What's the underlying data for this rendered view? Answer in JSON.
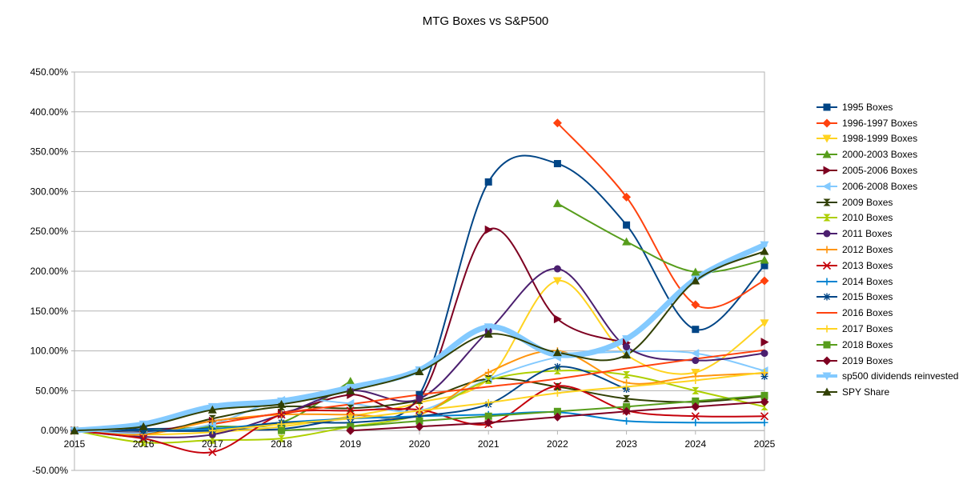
{
  "chart_data": {
    "type": "line",
    "title": "MTG Boxes vs S&P500",
    "xlabel": "",
    "ylabel": "",
    "categories": [
      "2015",
      "2016",
      "2017",
      "2018",
      "2019",
      "2020",
      "2021",
      "2022",
      "2023",
      "2024",
      "2025"
    ],
    "ylim": [
      -50,
      450
    ],
    "yticks": [
      -50,
      0,
      50,
      100,
      150,
      200,
      250,
      300,
      350,
      400,
      450
    ],
    "ytick_labels": [
      "-50.00%",
      "0.00%",
      "50.00%",
      "100.00%",
      "150.00%",
      "200.00%",
      "250.00%",
      "300.00%",
      "350.00%",
      "400.00%",
      "450.00%"
    ],
    "grid": "horizontal",
    "legend_position": "right",
    "series": [
      {
        "name": "1995 Boxes",
        "color": "#004586",
        "marker": "square",
        "values": [
          0,
          2,
          3,
          2,
          18,
          45,
          312,
          335,
          258,
          127,
          207
        ]
      },
      {
        "name": "1996-1997 Boxes",
        "color": "#ff420e",
        "marker": "diamond",
        "values": [
          0,
          null,
          null,
          null,
          null,
          null,
          null,
          386,
          293,
          158,
          188
        ]
      },
      {
        "name": "1998-1999 Boxes",
        "color": "#ffd320",
        "marker": "triangle-down",
        "values": [
          0,
          -5,
          -2,
          5,
          18,
          35,
          65,
          188,
          95,
          73,
          135
        ]
      },
      {
        "name": "2000-2003 Boxes",
        "color": "#579d1c",
        "marker": "triangle-up",
        "values": [
          0,
          0,
          5,
          10,
          62,
          null,
          null,
          285,
          237,
          199,
          214
        ]
      },
      {
        "name": "2005-2006 Boxes",
        "color": "#7e0021",
        "marker": "triangle-right",
        "values": [
          0,
          -2,
          12,
          22,
          45,
          40,
          252,
          140,
          110,
          null,
          111
        ]
      },
      {
        "name": "2006-2008 Boxes",
        "color": "#83caff",
        "marker": "triangle-left",
        "values": [
          0,
          -3,
          8,
          38,
          34,
          25,
          65,
          92,
          99,
          97,
          75
        ]
      },
      {
        "name": "2009 Boxes",
        "color": "#314004",
        "marker": "bowtie",
        "values": [
          0,
          -5,
          15,
          30,
          28,
          38,
          65,
          55,
          40,
          36,
          43
        ]
      },
      {
        "name": "2010 Boxes",
        "color": "#aecf00",
        "marker": "hourglass",
        "values": [
          0,
          -15,
          -12,
          -10,
          5,
          20,
          63,
          75,
          70,
          50,
          30
        ]
      },
      {
        "name": "2011 Boxes",
        "color": "#4b1f6f",
        "marker": "circle",
        "values": [
          0,
          -8,
          -5,
          20,
          50,
          40,
          125,
          203,
          105,
          88,
          97
        ]
      },
      {
        "name": "2012 Boxes",
        "color": "#ff950e",
        "marker": "plus",
        "values": [
          0,
          -5,
          12,
          20,
          20,
          20,
          73,
          100,
          60,
          68,
          72
        ]
      },
      {
        "name": "2013 Boxes",
        "color": "#c5000b",
        "marker": "x",
        "values": [
          0,
          -10,
          -27,
          20,
          25,
          26,
          8,
          56,
          25,
          18,
          18
        ]
      },
      {
        "name": "2014 Boxes",
        "color": "#0084d1",
        "marker": "plus",
        "values": [
          0,
          0,
          2,
          10,
          15,
          18,
          20,
          23,
          12,
          10,
          10
        ]
      },
      {
        "name": "2015 Boxes",
        "color": "#004586",
        "marker": "star",
        "values": [
          0,
          0,
          0,
          10,
          10,
          18,
          33,
          80,
          52,
          null,
          68
        ]
      },
      {
        "name": "2016 Boxes",
        "color": "#ff420e",
        "marker": "none",
        "values": [
          null,
          null,
          8,
          22,
          33,
          45,
          55,
          65,
          78,
          90,
          101
        ]
      },
      {
        "name": "2017 Boxes",
        "color": "#ffd320",
        "marker": "plus",
        "values": [
          null,
          null,
          0,
          8,
          15,
          25,
          35,
          47,
          55,
          63,
          73
        ]
      },
      {
        "name": "2018 Boxes",
        "color": "#579d1c",
        "marker": "square",
        "values": [
          null,
          null,
          null,
          0,
          5,
          12,
          18,
          24,
          30,
          37,
          44
        ]
      },
      {
        "name": "2019 Boxes",
        "color": "#7e0021",
        "marker": "diamond",
        "values": [
          null,
          null,
          null,
          null,
          0,
          5,
          10,
          17,
          24,
          30,
          36
        ]
      },
      {
        "name": "sp500 dividends reinvested",
        "color": "#83caff",
        "marker": "triangle-down",
        "values": [
          0,
          8,
          30,
          37,
          54,
          76,
          130,
          95,
          115,
          190,
          233
        ]
      },
      {
        "name": "SPY Share",
        "color": "#314004",
        "marker": "triangle-up",
        "values": [
          0,
          5,
          26,
          33,
          50,
          74,
          121,
          98,
          95,
          188,
          225
        ]
      }
    ]
  }
}
